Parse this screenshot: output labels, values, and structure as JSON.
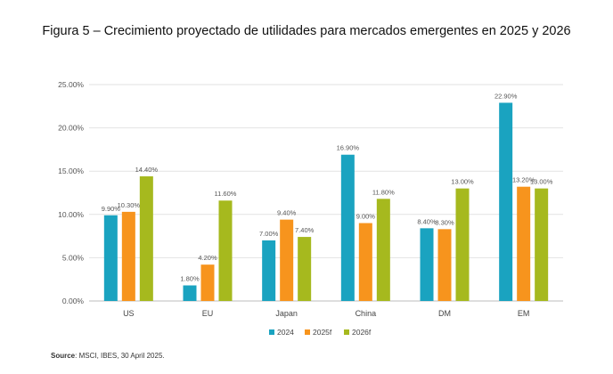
{
  "figure_title": "Figura 5 – Crecimiento proyectado de utilidades para mercados emergentes en 2025 y 2026",
  "source": {
    "label": "Source",
    "text": ": MSCI, IBES, 30 April 2025."
  },
  "chart_data": {
    "type": "bar",
    "title": "Figura 5 – Crecimiento proyectado de utilidades para mercados emergentes en 2025 y 2026",
    "xlabel": "",
    "ylabel": "",
    "categories": [
      "US",
      "EU",
      "Japan",
      "China",
      "DM",
      "EM"
    ],
    "ylim": [
      0,
      25
    ],
    "yticks": [
      0,
      5,
      10,
      15,
      20,
      25
    ],
    "ytick_labels": [
      "0.00%",
      "5.00%",
      "10.00%",
      "15.00%",
      "20.00%",
      "25.00%"
    ],
    "grid": true,
    "legend_position": "bottom-center",
    "series": [
      {
        "name": "2024",
        "color": "#1aa3c0",
        "values": [
          9.9,
          1.8,
          7.0,
          16.9,
          8.4,
          22.9
        ],
        "labels": [
          "9.90%",
          "1.80%",
          "7.00%",
          "16.90%",
          "8.40%",
          "22.90%"
        ]
      },
      {
        "name": "2025f",
        "color": "#f7941d",
        "values": [
          10.3,
          4.2,
          9.4,
          9.0,
          8.3,
          13.2
        ],
        "labels": [
          "10.30%",
          "4.20%",
          "9.40%",
          "9.00%",
          "8.30%",
          "13.20%"
        ]
      },
      {
        "name": "2026f",
        "color": "#a6b91e",
        "values": [
          14.4,
          11.6,
          7.4,
          11.8,
          13.0,
          13.0
        ],
        "labels": [
          "14.40%",
          "11.60%",
          "7.40%",
          "11.80%",
          "13.00%",
          "13.00%"
        ]
      }
    ]
  }
}
